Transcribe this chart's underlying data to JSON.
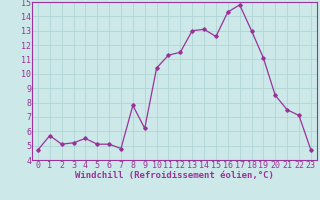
{
  "x": [
    0,
    1,
    2,
    3,
    4,
    5,
    6,
    7,
    8,
    9,
    10,
    11,
    12,
    13,
    14,
    15,
    16,
    17,
    18,
    19,
    20,
    21,
    22,
    23
  ],
  "y": [
    4.7,
    5.7,
    5.1,
    5.2,
    5.5,
    5.1,
    5.1,
    4.8,
    7.8,
    6.2,
    10.4,
    11.3,
    11.5,
    13.0,
    13.1,
    12.6,
    14.3,
    14.8,
    13.0,
    11.1,
    8.5,
    7.5,
    7.1,
    4.7
  ],
  "line_color": "#993399",
  "marker": "D",
  "marker_size": 1.8,
  "bg_color": "#cce8e8",
  "grid_color": "#b0d4d4",
  "xlabel": "Windchill (Refroidissement éolien,°C)",
  "xlabel_color": "#993399",
  "tick_label_color": "#993399",
  "ylim": [
    4,
    15
  ],
  "xlim": [
    -0.5,
    23.5
  ],
  "yticks": [
    4,
    5,
    6,
    7,
    8,
    9,
    10,
    11,
    12,
    13,
    14,
    15
  ],
  "xticks": [
    0,
    1,
    2,
    3,
    4,
    5,
    6,
    7,
    8,
    9,
    10,
    11,
    12,
    13,
    14,
    15,
    16,
    17,
    18,
    19,
    20,
    21,
    22,
    23
  ],
  "spine_color": "#993399",
  "axis_bg_color": "#cce8e8",
  "tick_fontsize": 6.0,
  "xlabel_fontsize": 6.5,
  "linewidth": 0.9
}
